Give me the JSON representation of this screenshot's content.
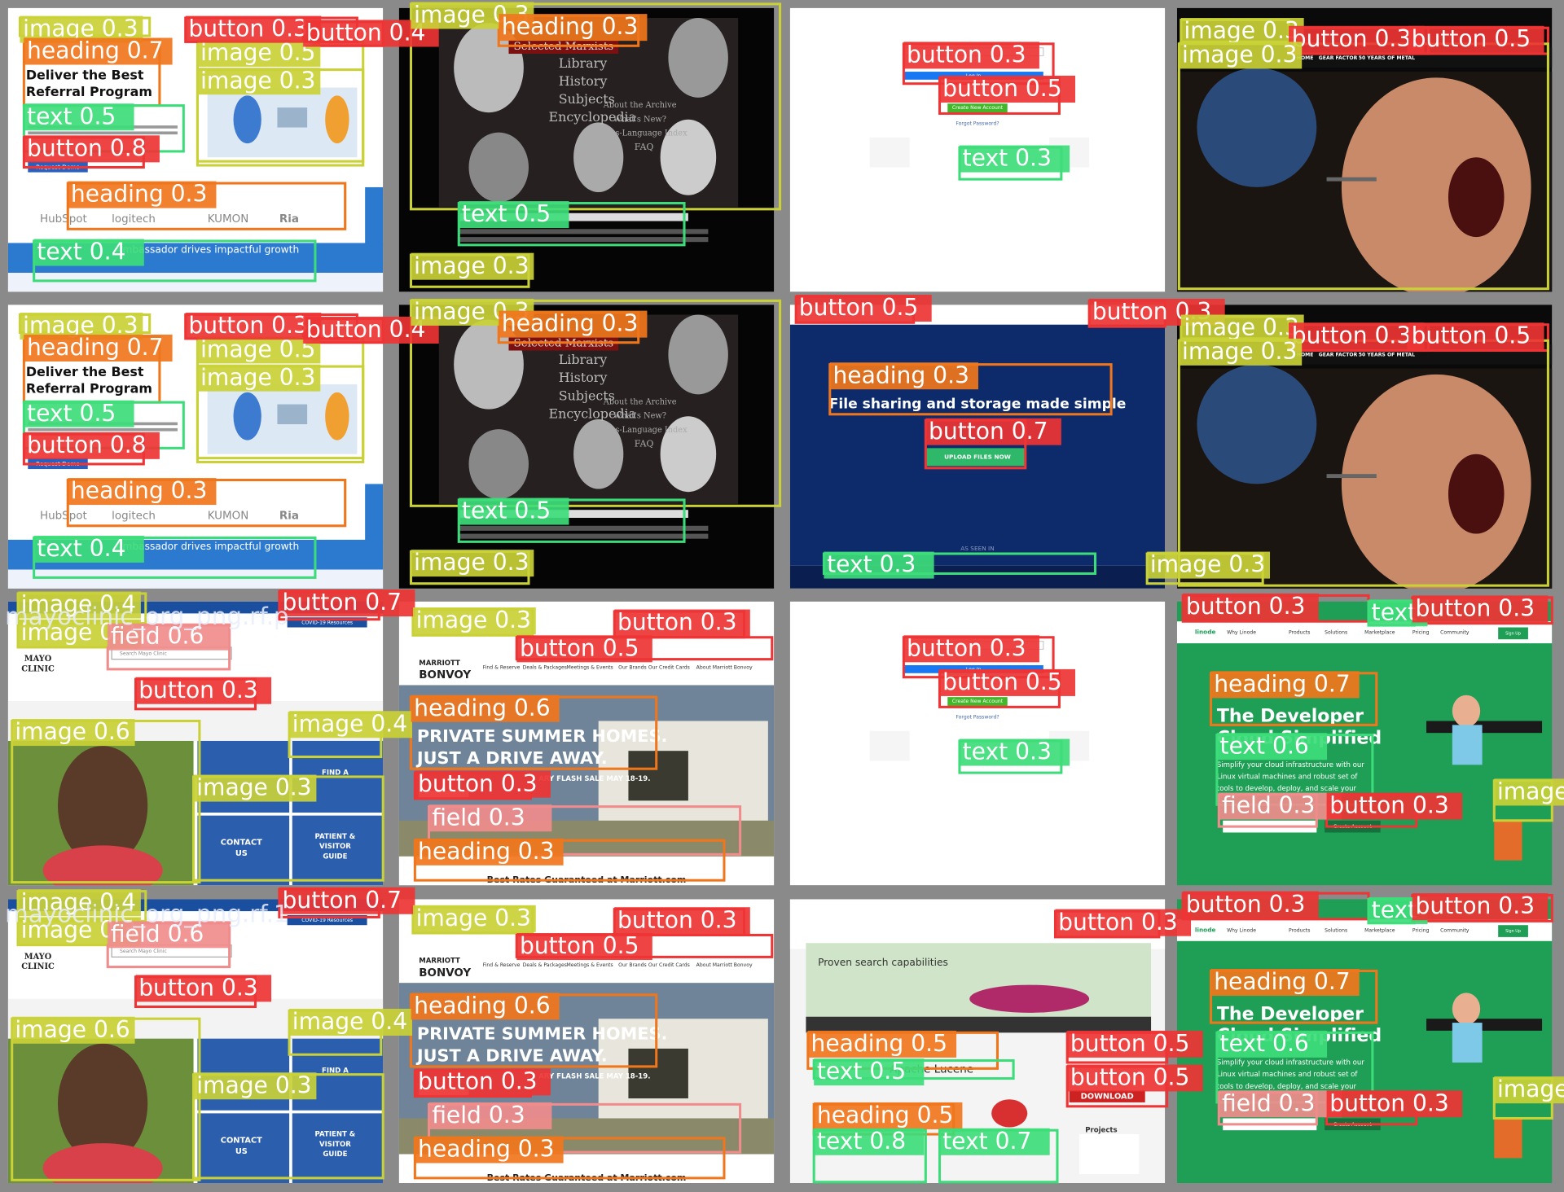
{
  "tiles": [
    {
      "texts": [
        "Deliver the Best",
        "Referral Program",
        "Request Demo",
        "HubSpot",
        "logitech",
        "KUMON",
        "Ria",
        "Ambassador drives impactful growth"
      ],
      "detections": [
        "image 0.3",
        "heading 0.7",
        "image 0.5",
        "image 0.3",
        "text 0.5",
        "button 0.8",
        "heading 0.3",
        "text 0.4",
        "button 0.3",
        "button 0.4"
      ]
    },
    {
      "texts": [
        "Selected Marxists",
        "Library",
        "History",
        "Subjects",
        "Encyclopedia",
        "About the Archive",
        "What's New?",
        "Cross-Language Index",
        "FAQ"
      ],
      "detections": [
        "image 0.3",
        "heading 0.3",
        "text 0.5",
        "image 0.3"
      ]
    },
    {
      "texts": [
        "Log In",
        "Create New Account",
        "Forgot Password?"
      ],
      "detections": [
        "button 0.3",
        "button 0.5",
        "text 0.3"
      ]
    },
    {
      "texts": [
        "HOME",
        "GEAR FACTOR",
        "50 YEARS OF METAL"
      ],
      "detections": [
        "image 0.3",
        "button 0.3",
        "button 0.5",
        "image 0.3"
      ]
    },
    {
      "texts": [
        "Deliver the Best",
        "Referral Program",
        "Request Demo",
        "HubSpot",
        "logitech",
        "KUMON",
        "Ria",
        "Ambassador drives impactful growth"
      ],
      "detections": [
        "image 0.3",
        "heading 0.7",
        "image 0.5",
        "image 0.3",
        "text 0.5",
        "button 0.8",
        "heading 0.3",
        "text 0.4",
        "button 0.3",
        "button 0.4"
      ]
    },
    {
      "texts": [
        "Selected Marxists",
        "Library",
        "History",
        "Subjects",
        "Encyclopedia",
        "About the Archive",
        "What's New?",
        "Cross-Language Index",
        "FAQ"
      ],
      "detections": [
        "image 0.3",
        "heading 0.3",
        "text 0.5",
        "image 0.3"
      ]
    },
    {
      "texts": [
        "File sharing and storage made simple",
        "UPLOAD FILES NOW",
        "AS SEEN IN"
      ],
      "detections": [
        "button 0.5",
        "button 0.3",
        "heading 0.3",
        "button 0.7",
        "text 0.3"
      ]
    },
    {
      "texts": [
        "HOME",
        "GEAR FACTOR",
        "50 YEARS OF METAL"
      ],
      "detections": [
        "image 0.3",
        "button 0.3",
        "button 0.5",
        "image 0.3",
        "image 0.3"
      ]
    },
    {
      "caption": "mayoclinic_org_png.rf.p",
      "texts": [
        "COVID-19 Resources",
        "Search Mayo Clinic",
        "MAYO",
        "CLINIC",
        "FIND A",
        "CONTACT",
        "US",
        "PATIENT &",
        "VISITOR",
        "GUIDE"
      ],
      "detections": [
        "image 0.4",
        "button 0.7",
        "image 0.3",
        "field 0.6",
        "button 0.3",
        "image 0.6",
        "image 0.4",
        "image 0.3"
      ]
    },
    {
      "texts": [
        "MARRIOTT",
        "BONVOY",
        "Find & Reserve",
        "Deals & Packages",
        "Meetings & Events",
        "Our Brands",
        "Our Credit Cards",
        "About Marriott Bonvoy",
        "PRIVATE SUMMER HOMES.",
        "JUST A DRIVE AWAY.",
        "ARY FLASH SALE MAY 18-19.",
        "Best Rates Guaranteed at Marriott.com"
      ],
      "detections": [
        "image 0.3",
        "button 0.3",
        "button 0.5",
        "heading 0.6",
        "button 0.3",
        "field 0.3",
        "heading 0.3"
      ]
    },
    {
      "texts": [
        "Log In",
        "Create New Account",
        "Forgot Password?"
      ],
      "detections": [
        "button 0.3",
        "button 0.5",
        "text 0.3"
      ]
    },
    {
      "texts": [
        "linode",
        "Why Linode",
        "Products",
        "Solutions",
        "Marketplace",
        "Pricing",
        "Community",
        "Sign Up",
        "The Developer",
        "Cloud Simplified",
        "Simplify your cloud infrastructure with our",
        "Linux virtual machines and robust set of",
        "tools to develop, deploy, and scale your",
        "Create Account"
      ],
      "detections": [
        "button 0.3",
        "text",
        "button 0.3",
        "heading 0.7",
        "text 0.6",
        "field 0.3",
        "button 0.3",
        "image"
      ]
    },
    {
      "caption": "mayoclinic_org_png.rf.1",
      "texts": [
        "COVID-19 Resources",
        "Search Mayo Clinic",
        "MAYO",
        "CLINIC",
        "FIND A",
        "CONTACT",
        "US",
        "PATIENT &",
        "VISITOR",
        "GUIDE"
      ],
      "detections": [
        "image 0.4",
        "button 0.7",
        "image 0.3",
        "field 0.6",
        "button 0.3",
        "image 0.6",
        "image 0.4",
        "image 0.3"
      ]
    },
    {
      "texts": [
        "MARRIOTT",
        "BONVOY",
        "Find & Reserve",
        "Deals & Packages",
        "Meetings & Events",
        "Our Brands",
        "Our Credit Cards",
        "About Marriott Bonvoy",
        "PRIVATE SUMMER HOMES.",
        "JUST A DRIVE AWAY.",
        "ARY FLASH SALE MAY 18-19.",
        "Best Rates Guaranteed at Marriott.com"
      ],
      "detections": [
        "image 0.3",
        "button 0.3",
        "button 0.5",
        "heading 0.6",
        "button 0.3",
        "field 0.3",
        "heading 0.3"
      ]
    },
    {
      "texts": [
        "Proven search capabilities",
        "Apache Lucene",
        "DOWNLOAD",
        "Projects"
      ],
      "detections": [
        "button 0.3",
        "heading 0.5",
        "text 0.5",
        "button 0.5",
        "button 0.5",
        "heading 0.5",
        "text 0.8",
        "text 0.7"
      ]
    },
    {
      "texts": [
        "linode",
        "Why Linode",
        "Products",
        "Solutions",
        "Marketplace",
        "Pricing",
        "Community",
        "Sign Up",
        "The Developer",
        "Cloud Simplified",
        "Simplify your cloud infrastructure with our",
        "Linux virtual machines and robust set of",
        "tools to develop, deploy, and scale your",
        "Create Account"
      ],
      "detections": [
        "button 0.3",
        "text",
        "button 0.3",
        "heading 0.7",
        "text 0.6",
        "field 0.3",
        "button 0.3",
        "image"
      ]
    }
  ]
}
